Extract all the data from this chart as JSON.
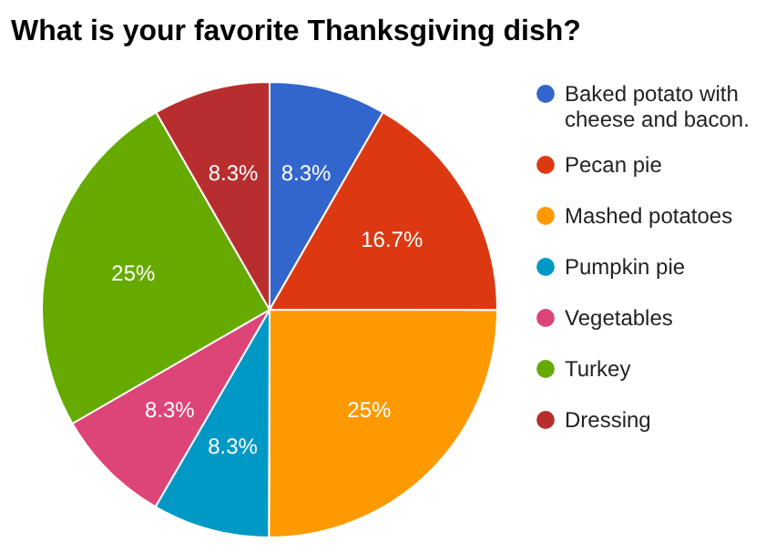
{
  "chart_data": {
    "type": "pie",
    "title": "What is your favorite Thanksgiving dish?",
    "categories": [
      "Baked potato with cheese and bacon.",
      "Pecan pie",
      "Mashed potatoes",
      "Pumpkin pie",
      "Vegetables",
      "Turkey",
      "Dressing"
    ],
    "values": [
      8.3,
      16.7,
      25,
      8.3,
      8.3,
      25,
      8.3
    ],
    "value_labels": [
      "8.3%",
      "16.7%",
      "25%",
      "8.3%",
      "8.3%",
      "25%",
      "8.3%"
    ],
    "colors": [
      "#3366cc",
      "#dc3912",
      "#ff9900",
      "#0099c6",
      "#dd4477",
      "#66aa00",
      "#b82e2e"
    ],
    "legend": "right"
  }
}
